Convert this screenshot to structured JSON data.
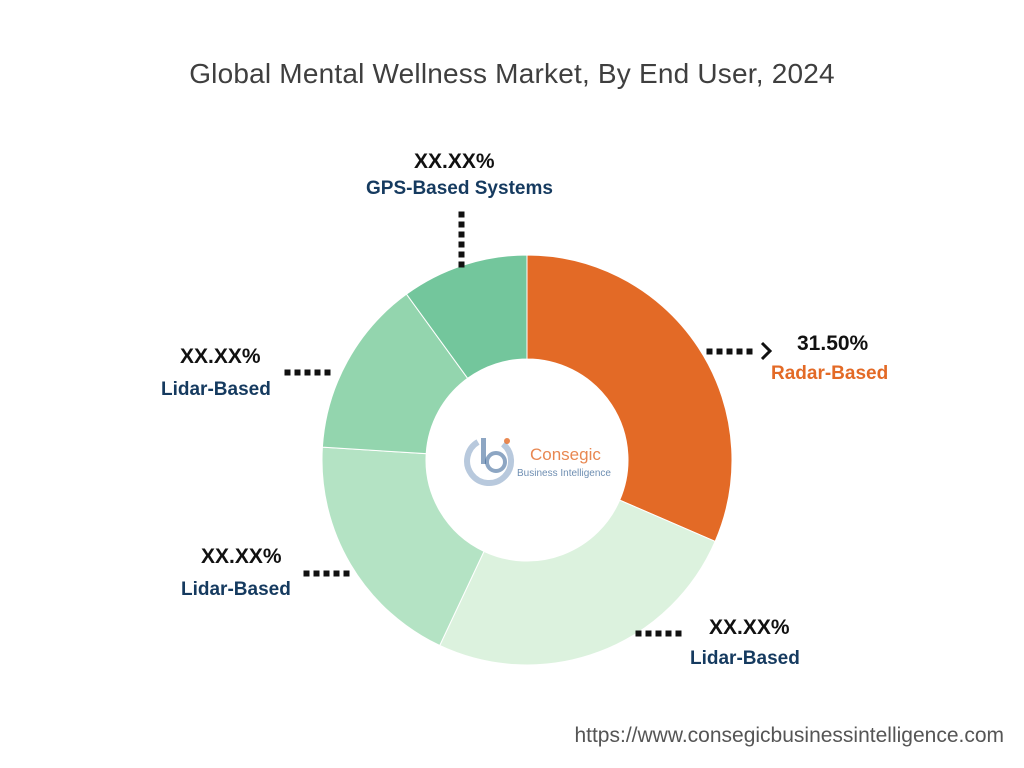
{
  "title": "Global Mental Wellness Market, By End User, 2024",
  "source_url": "https://www.consegicbusinessintelligence.com",
  "logo": {
    "name": "Consegic",
    "tagline": "Business Intelligence"
  },
  "colors": {
    "radar": "#e36a26",
    "lidar_1": "#dcf2de",
    "lidar_2": "#b4e3c4",
    "lidar_3": "#93d5ae",
    "gps": "#73c69c",
    "label_blue": "#153a5f",
    "label_orange": "#e36a26"
  },
  "chart_data": {
    "type": "pie",
    "variant": "donut",
    "title": "Global Mental Wellness Market, By End User, 2024",
    "series": [
      {
        "name": "Radar-Based",
        "value": 31.5,
        "label": "31.50%"
      },
      {
        "name": "Lidar-Based",
        "value": 25.5,
        "label": "XX.XX%"
      },
      {
        "name": "Lidar-Based",
        "value": 19.0,
        "label": "XX.XX%"
      },
      {
        "name": "Lidar-Based",
        "value": 14.0,
        "label": "XX.XX%"
      },
      {
        "name": "GPS-Based Systems",
        "value": 10.0,
        "label": "XX.XX%"
      }
    ]
  }
}
